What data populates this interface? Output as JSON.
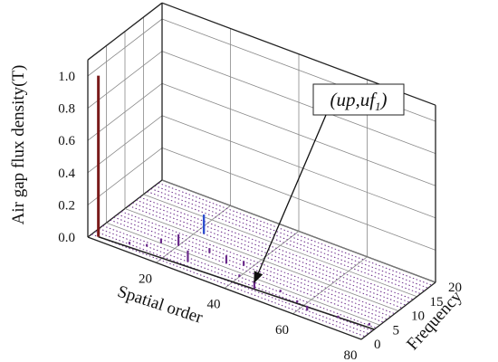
{
  "chart_data": {
    "type": "bar3d",
    "title": "",
    "zlabel": "Air gap flux density(T)",
    "xlabel": "Spatial order",
    "ylabel": "Frequency",
    "zlim": [
      0,
      1.1
    ],
    "xlim": [
      0,
      80
    ],
    "ylim": [
      0,
      20
    ],
    "z_ticks": [
      "0.0",
      "0.2",
      "0.4",
      "0.6",
      "0.8",
      "1.0"
    ],
    "x_ticks": [
      "20",
      "40",
      "60",
      "80"
    ],
    "y_ticks": [
      "0",
      "5",
      "10",
      "15",
      "20"
    ],
    "grid": true,
    "annotation": {
      "text_main": "(up,uf",
      "text_sub": "1",
      "text_end": ")",
      "target_spatial_order": 46,
      "target_frequency": 2.5
    },
    "bars": [
      {
        "spatial_order": 2,
        "frequency": 1,
        "value": 1.0,
        "color": "#7a1a1a"
      },
      {
        "spatial_order": 22,
        "frequency": 11,
        "value": 0.12,
        "color": "#2f4fd0"
      },
      {
        "spatial_order": 20,
        "frequency": 6,
        "value": 0.07,
        "color": "#6a2a8a"
      },
      {
        "spatial_order": 26,
        "frequency": 3,
        "value": 0.07,
        "color": "#6a2a8a"
      },
      {
        "spatial_order": 34,
        "frequency": 6,
        "value": 0.05,
        "color": "#6a2a8a"
      },
      {
        "spatial_order": 46,
        "frequency": 2.5,
        "value": 0.05,
        "color": "#6a2a8a"
      },
      {
        "spatial_order": 16,
        "frequency": 5,
        "value": 0.03,
        "color": "#6a2a8a"
      },
      {
        "spatial_order": 28,
        "frequency": 7,
        "value": 0.03,
        "color": "#6a2a8a"
      },
      {
        "spatial_order": 38,
        "frequency": 7,
        "value": 0.03,
        "color": "#6a2a8a"
      },
      {
        "spatial_order": 62,
        "frequency": 2,
        "value": 0.03,
        "color": "#6a2a8a"
      },
      {
        "spatial_order": 10,
        "frequency": 2,
        "value": 0.015,
        "color": "#6a2a8a"
      },
      {
        "spatial_order": 14,
        "frequency": 3,
        "value": 0.015,
        "color": "#6a2a8a"
      },
      {
        "spatial_order": 40,
        "frequency": 4,
        "value": 0.015,
        "color": "#6a2a8a"
      },
      {
        "spatial_order": 52,
        "frequency": 4,
        "value": 0.015,
        "color": "#6a2a8a"
      },
      {
        "spatial_order": 58,
        "frequency": 3,
        "value": 0.015,
        "color": "#6a2a8a"
      },
      {
        "spatial_order": 70,
        "frequency": 3,
        "value": 0.015,
        "color": "#6a2a8a"
      },
      {
        "spatial_order": 78,
        "frequency": 4,
        "value": 0.015,
        "color": "#6a2a8a"
      }
    ]
  },
  "colors": {
    "frame": "#222222",
    "grid": "#8a8a8a",
    "floor_dots": "#6a2a8a",
    "base_line": "#222222"
  }
}
